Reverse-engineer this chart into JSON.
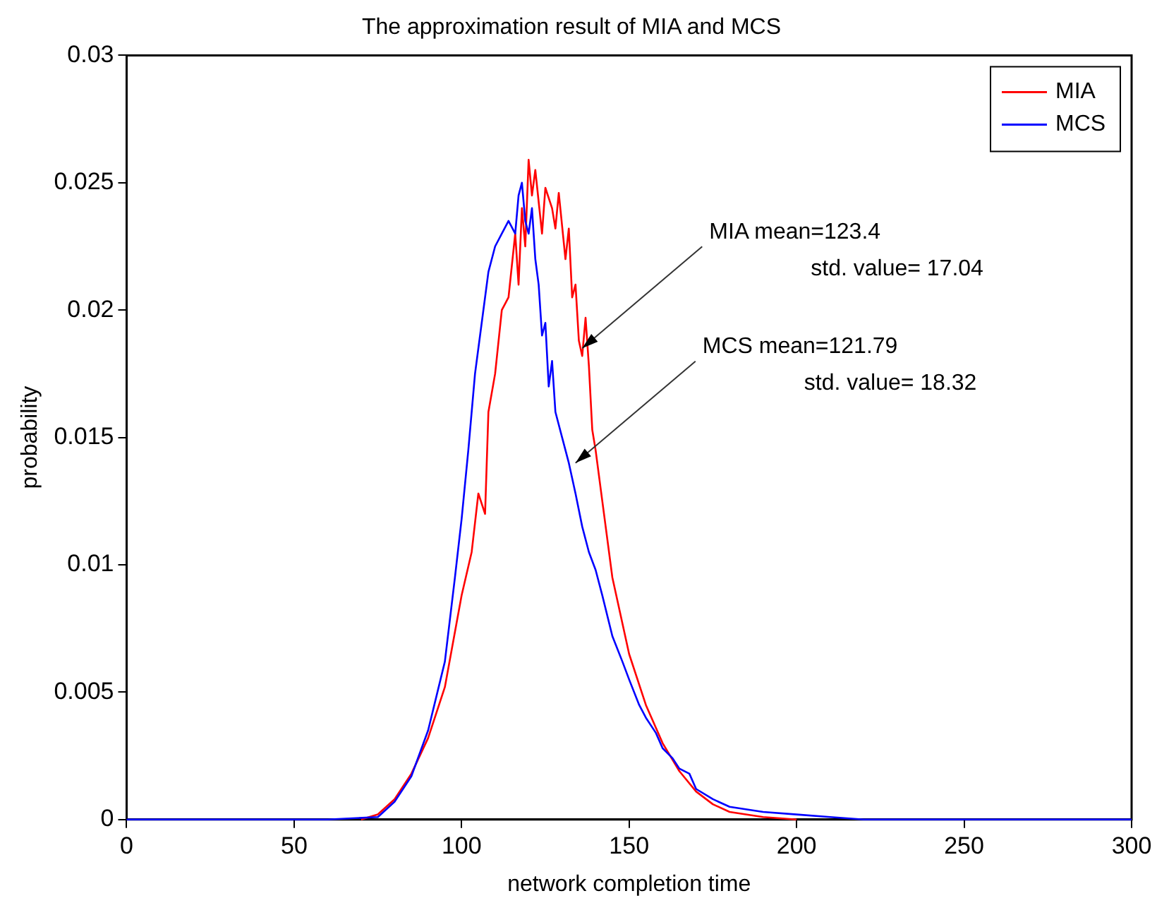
{
  "chart_data": {
    "type": "line",
    "title": "The approximation result of MIA and MCS",
    "xlabel": "network completion time",
    "ylabel": "probability",
    "xlim": [
      0,
      300
    ],
    "xticks": [
      0,
      50,
      100,
      150,
      200,
      250,
      300
    ],
    "ylim": [
      0,
      0.03
    ],
    "yticks": [
      0,
      0.005,
      0.01,
      0.015,
      0.02,
      0.025,
      0.03
    ],
    "grid": false,
    "legend": "top right",
    "marker": "none",
    "line_style": "solid",
    "series": [
      {
        "name": "MIA",
        "color": "#ff0000",
        "x": [
          70,
          75,
          80,
          85,
          90,
          95,
          100,
          103,
          105,
          107,
          108,
          110,
          112,
          114,
          116,
          117,
          118,
          119,
          120,
          121,
          122,
          124,
          125,
          127,
          128,
          129,
          131,
          132,
          133,
          134,
          135,
          136,
          137,
          138,
          139,
          140,
          142,
          145,
          150,
          155,
          160,
          165,
          170,
          175,
          180,
          190,
          200
        ],
        "values": [
          0,
          0.0002,
          0.0008,
          0.0018,
          0.0032,
          0.0052,
          0.0088,
          0.0105,
          0.0128,
          0.012,
          0.016,
          0.0175,
          0.02,
          0.0205,
          0.023,
          0.021,
          0.024,
          0.0225,
          0.0259,
          0.0245,
          0.0255,
          0.023,
          0.0248,
          0.024,
          0.0232,
          0.0246,
          0.022,
          0.0232,
          0.0205,
          0.021,
          0.0188,
          0.0182,
          0.0197,
          0.0178,
          0.0153,
          0.0145,
          0.0125,
          0.0095,
          0.0065,
          0.0045,
          0.003,
          0.0019,
          0.0011,
          0.0006,
          0.0003,
          0.0001,
          0
        ]
      },
      {
        "name": "MCS",
        "color": "#0000ff",
        "x": [
          0,
          60,
          75,
          80,
          85,
          90,
          95,
          98,
          100,
          102,
          104,
          106,
          108,
          110,
          112,
          114,
          116,
          117,
          118,
          119,
          120,
          121,
          122,
          123,
          124,
          125,
          126,
          127,
          128,
          130,
          132,
          134,
          136,
          138,
          140,
          142,
          145,
          148,
          150,
          153,
          155,
          158,
          160,
          163,
          165,
          168,
          170,
          175,
          180,
          190,
          200,
          210,
          220,
          300
        ],
        "values": [
          0,
          0,
          0.0001,
          0.0007,
          0.0017,
          0.0035,
          0.0062,
          0.0095,
          0.0118,
          0.0145,
          0.0175,
          0.0195,
          0.0215,
          0.0225,
          0.023,
          0.0235,
          0.023,
          0.0245,
          0.025,
          0.0235,
          0.023,
          0.024,
          0.022,
          0.021,
          0.019,
          0.0195,
          0.017,
          0.018,
          0.016,
          0.015,
          0.014,
          0.0128,
          0.0115,
          0.0105,
          0.0098,
          0.0088,
          0.0072,
          0.0062,
          0.0055,
          0.0045,
          0.004,
          0.0034,
          0.0028,
          0.0024,
          0.002,
          0.0018,
          0.0012,
          0.0008,
          0.0005,
          0.0003,
          0.0002,
          0.0001,
          0,
          0
        ]
      }
    ],
    "annotations": [
      {
        "text": "MIA mean=123.4\n      std. value= 17.04",
        "x": 136,
        "y": 0.0185
      },
      {
        "text": "MCS mean=121.79\n      std. value= 18.32",
        "x": 134,
        "y": 0.014
      }
    ]
  }
}
